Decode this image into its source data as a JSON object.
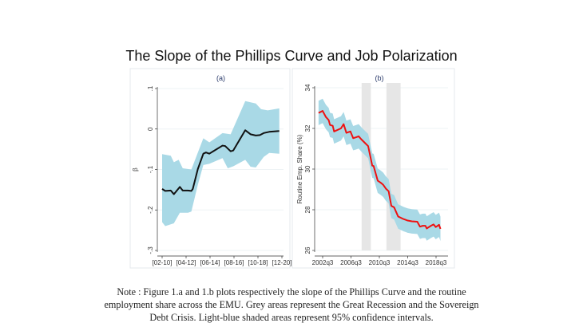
{
  "figure_title": "The Slope of the Phillips Curve and Job Polarization",
  "note": "Note : Figure 1.a and 1.b plots respectively the slope of the Phillips Curve and the routine employment share across the EMU. Grey areas represent the Great Recession and the Sovereign Debt Crisis. Light-blue shaded areas represent 95% confidence intervals.",
  "colors": {
    "ci_band": "#a9d9e6",
    "line_a": "#111111",
    "line_b": "#ee1111",
    "recession": "#e6e6e6"
  },
  "chart_data": [
    {
      "type": "line",
      "title": "(a)",
      "xlabel": "",
      "ylabel": "β",
      "ylim": [
        -0.3,
        0.1
      ],
      "yticks": [
        -0.3,
        -0.2,
        -0.1,
        0,
        0.1
      ],
      "ytick_labels": [
        "-.3",
        "-.2",
        "-.1",
        "0",
        ".1"
      ],
      "xticks": [
        0,
        1,
        2,
        3,
        4,
        5
      ],
      "xtick_labels": [
        "[02-10]",
        "[04-12]",
        "[06-14]",
        "[08-16]",
        "[10-18]",
        "[12-20]"
      ],
      "grid": true,
      "series": [
        {
          "name": "slope",
          "x": [
            0,
            0.13,
            0.36,
            0.49,
            0.74,
            0.86,
            1.08,
            1.22,
            1.28,
            1.49,
            1.72,
            1.83,
            1.97,
            2.19,
            2.52,
            2.63,
            2.86,
            2.97,
            3.47,
            3.69,
            3.91,
            4.08,
            4.24,
            4.47,
            4.89
          ],
          "y": [
            -0.148,
            -0.153,
            -0.152,
            -0.161,
            -0.143,
            -0.152,
            -0.152,
            -0.153,
            -0.148,
            -0.099,
            -0.061,
            -0.058,
            -0.061,
            -0.053,
            -0.041,
            -0.042,
            -0.055,
            -0.053,
            -0.003,
            -0.013,
            -0.016,
            -0.015,
            -0.01,
            -0.007,
            -0.005
          ]
        }
      ],
      "ci_upper": {
        "x": [
          0,
          0.36,
          0.49,
          0.69,
          0.86,
          1.22,
          1.72,
          1.97,
          2.52,
          2.86,
          3.47,
          3.91,
          4.13,
          4.41,
          4.89
        ],
        "y": [
          -0.062,
          -0.066,
          -0.082,
          -0.076,
          -0.097,
          -0.1,
          -0.023,
          -0.033,
          -0.01,
          -0.013,
          0.069,
          0.063,
          0.049,
          0.046,
          0.051
        ]
      },
      "ci_lower": {
        "x": [
          0,
          0.13,
          0.49,
          0.74,
          1.08,
          1.22,
          1.49,
          1.72,
          1.97,
          2.52,
          2.74,
          2.97,
          3.47,
          3.69,
          3.91,
          4.24,
          4.47,
          4.89
        ],
        "y": [
          -0.23,
          -0.24,
          -0.233,
          -0.207,
          -0.207,
          -0.204,
          -0.138,
          -0.089,
          -0.086,
          -0.072,
          -0.097,
          -0.092,
          -0.076,
          -0.093,
          -0.095,
          -0.069,
          -0.059,
          -0.061
        ]
      }
    },
    {
      "type": "line",
      "title": "(b)",
      "xlabel": "",
      "ylabel": "Routine Emp. Share (%)",
      "ylim": [
        26,
        34
      ],
      "yticks": [
        26,
        28,
        30,
        32,
        34
      ],
      "ytick_labels": [
        "26",
        "28",
        "30",
        "32",
        "34"
      ],
      "xticks": [
        2002.5,
        2006.5,
        2010.5,
        2014.5,
        2018.5
      ],
      "xtick_labels": [
        "2002q3",
        "2006q3",
        "2010q3",
        "2014q3",
        "2018q3"
      ],
      "grid": true,
      "shaded_periods": [
        [
          2008.0,
          2009.3
        ],
        [
          2011.5,
          2013.5
        ]
      ],
      "ci_halfwidth": 0.6,
      "series": [
        {
          "name": "routine share",
          "x": [
            2001.92,
            2002.5,
            2002.96,
            2003.35,
            2003.54,
            2003.92,
            2004.12,
            2005.08,
            2005.46,
            2005.85,
            2006.42,
            2006.81,
            2007.19,
            2007.58,
            2007.96,
            2008.54,
            2008.92,
            2009.5,
            2009.69,
            2010.27,
            2010.65,
            2011.04,
            2011.42,
            2011.81,
            2012.19,
            2012.58,
            2013.15,
            2013.92,
            2014.5,
            2015.08,
            2015.85,
            2016.23,
            2016.62,
            2017.0,
            2017.19,
            2017.77,
            2018.15,
            2018.46,
            2018.92,
            2019.12
          ],
          "y": [
            32.76,
            32.86,
            32.56,
            32.41,
            32.17,
            32.13,
            31.85,
            32.0,
            32.21,
            31.78,
            31.85,
            31.52,
            31.56,
            31.61,
            31.46,
            31.26,
            31.13,
            30.17,
            30.15,
            29.43,
            29.34,
            29.23,
            29.04,
            28.91,
            28.19,
            28.12,
            27.67,
            27.54,
            27.47,
            27.43,
            27.41,
            27.17,
            27.21,
            27.21,
            27.08,
            27.21,
            27.28,
            27.15,
            27.26,
            27.06
          ]
        }
      ]
    }
  ]
}
